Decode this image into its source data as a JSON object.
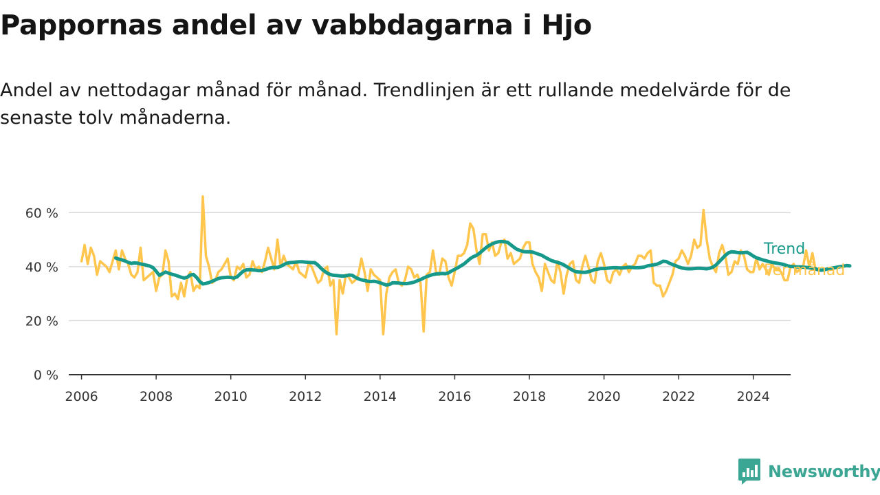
{
  "chart_data": {
    "type": "line",
    "title": "Pappornas andel av vabbdagarna i Hjo",
    "subtitle": "Andel av nettodagar månad för månad. Trendlinjen är ett rullande medelvärde för de senaste tolv månaderna.",
    "xlabel": "",
    "ylabel": "",
    "ylim": [
      0,
      70
    ],
    "yticks": [
      0,
      20,
      40,
      60
    ],
    "ytick_labels": [
      "0 %",
      "20 %",
      "40 %",
      "60 %"
    ],
    "xlim": [
      2005.75,
      2025.0
    ],
    "xticks": [
      2006,
      2008,
      2010,
      2012,
      2014,
      2016,
      2018,
      2020,
      2022,
      2024
    ],
    "xtick_labels": [
      "2006",
      "2008",
      "2010",
      "2012",
      "2014",
      "2016",
      "2018",
      "2020",
      "2022",
      "2024"
    ],
    "grid": true,
    "legend": "inline labels at line ends, right",
    "colors": {
      "monthly": "#ffc54d",
      "trend": "#16998a",
      "grid": "#d9d9d9",
      "axis": "#333333"
    },
    "series": [
      {
        "name": "Per månad",
        "x_start": "2006-01",
        "interval": "month",
        "values": [
          42,
          48,
          41,
          47,
          44,
          37,
          42,
          41,
          40,
          38,
          42,
          46,
          39,
          46,
          43,
          41,
          37,
          36,
          38,
          47,
          35,
          36,
          37,
          38,
          31,
          36,
          37,
          46,
          42,
          29,
          30,
          28,
          34,
          29,
          36,
          38,
          31,
          33,
          32,
          66,
          44,
          40,
          34,
          35,
          38,
          39,
          41,
          43,
          36,
          35,
          40,
          39,
          41,
          36,
          37,
          42,
          39,
          40,
          38,
          42,
          47,
          43,
          39,
          50,
          40,
          44,
          41,
          40,
          39,
          42,
          38,
          37,
          36,
          41,
          40,
          37,
          34,
          35,
          39,
          40,
          33,
          35,
          15,
          35,
          30,
          37,
          36,
          34,
          35,
          37,
          43,
          38,
          31,
          39,
          37,
          36,
          35,
          15,
          30,
          36,
          38,
          39,
          34,
          33,
          35,
          40,
          39,
          36,
          37,
          34,
          16,
          37,
          38,
          46,
          38,
          37,
          43,
          42,
          36,
          33,
          38,
          44,
          44,
          45,
          48,
          56,
          54,
          46,
          41,
          52,
          52,
          46,
          49,
          44,
          45,
          49,
          50,
          43,
          45,
          41,
          42,
          43,
          47,
          49,
          49,
          41,
          38,
          36,
          31,
          41,
          38,
          35,
          34,
          42,
          38,
          30,
          37,
          41,
          42,
          35,
          34,
          40,
          44,
          40,
          35,
          34,
          42,
          45,
          41,
          35,
          34,
          38,
          39,
          37,
          40,
          41,
          38,
          40,
          41,
          44,
          44,
          43,
          45,
          46,
          34,
          33,
          33,
          29,
          31,
          34,
          37,
          42,
          43,
          46,
          44,
          41,
          44,
          50,
          47,
          48,
          61,
          50,
          43,
          40,
          38,
          45,
          48,
          44,
          37,
          38,
          42,
          41,
          46,
          44,
          39,
          38,
          38,
          43,
          39,
          41,
          39,
          37,
          41,
          39,
          39,
          38,
          35,
          35,
          40,
          41,
          38,
          39,
          40,
          46,
          40,
          45,
          39
        ]
      },
      {
        "name": "Trend",
        "x_start": "2006-12",
        "interval": "month",
        "values": [
          43.2,
          42.8,
          42.5,
          42.1,
          41.6,
          41.2,
          41.4,
          41.3,
          41.0,
          40.8,
          40.5,
          40.2,
          39.6,
          38.3,
          36.8,
          37.4,
          38.0,
          37.6,
          37.2,
          36.9,
          36.5,
          36.1,
          35.8,
          36.1,
          36.9,
          37.1,
          36.0,
          34.5,
          33.6,
          33.8,
          34.1,
          34.6,
          35.1,
          35.6,
          35.9,
          36.0,
          36.1,
          36.0,
          35.8,
          36.2,
          37.3,
          38.3,
          38.8,
          38.9,
          38.8,
          38.7,
          38.5,
          38.6,
          38.9,
          39.3,
          39.6,
          39.7,
          39.7,
          40.1,
          40.7,
          41.3,
          41.5,
          41.6,
          41.7,
          41.8,
          41.8,
          41.7,
          41.6,
          41.5,
          41.5,
          40.6,
          39.4,
          38.4,
          37.6,
          37.1,
          36.8,
          36.7,
          36.6,
          36.5,
          36.6,
          36.9,
          36.8,
          36.1,
          35.5,
          35.1,
          34.9,
          34.6,
          34.5,
          34.6,
          34.4,
          34.0,
          33.6,
          33.2,
          33.4,
          34.0,
          34.0,
          33.9,
          33.8,
          33.7,
          33.8,
          34.0,
          34.3,
          34.8,
          35.2,
          35.8,
          36.3,
          36.7,
          37.1,
          37.3,
          37.4,
          37.5,
          37.4,
          37.7,
          38.4,
          39.0,
          39.6,
          40.3,
          41.0,
          42.0,
          43.0,
          43.7,
          44.2,
          45.0,
          46.0,
          47.0,
          47.8,
          48.4,
          48.9,
          49.2,
          49.3,
          49.2,
          49.0,
          48.1,
          47.2,
          46.4,
          46.0,
          45.6,
          45.5,
          45.5,
          45.4,
          45.0,
          44.6,
          44.2,
          43.5,
          42.9,
          42.3,
          41.9,
          41.6,
          41.2,
          40.7,
          40.0,
          39.3,
          38.6,
          38.1,
          38.0,
          37.9,
          37.9,
          38.1,
          38.5,
          38.9,
          39.1,
          39.3,
          39.3,
          39.4,
          39.5,
          39.6,
          39.6,
          39.5,
          39.5,
          39.6,
          39.8,
          39.7,
          39.6,
          39.6,
          39.7,
          39.9,
          40.3,
          40.5,
          40.7,
          40.9,
          41.4,
          42.0,
          41.9,
          41.3,
          40.8,
          40.4,
          39.9,
          39.5,
          39.3,
          39.2,
          39.2,
          39.3,
          39.4,
          39.4,
          39.3,
          39.2,
          39.4,
          39.8,
          40.6,
          41.8,
          43.0,
          44.2,
          45.1,
          45.5,
          45.4,
          45.2,
          45.1,
          45.2,
          45.3,
          44.7,
          43.9,
          43.3,
          42.9,
          42.5,
          42.2,
          41.9,
          41.6,
          41.4,
          41.2,
          41.0,
          40.7,
          40.3,
          40.1,
          40.0,
          39.9,
          39.9,
          39.8,
          39.7,
          39.6,
          39.4,
          39.2,
          38.8,
          38.7,
          38.9,
          39.2,
          39.4,
          39.6,
          39.8,
          40.0,
          40.2,
          40.4,
          40.3
        ]
      }
    ]
  },
  "brand": {
    "name": "Newsworthy",
    "icon": "newsworthy-logo-icon"
  }
}
